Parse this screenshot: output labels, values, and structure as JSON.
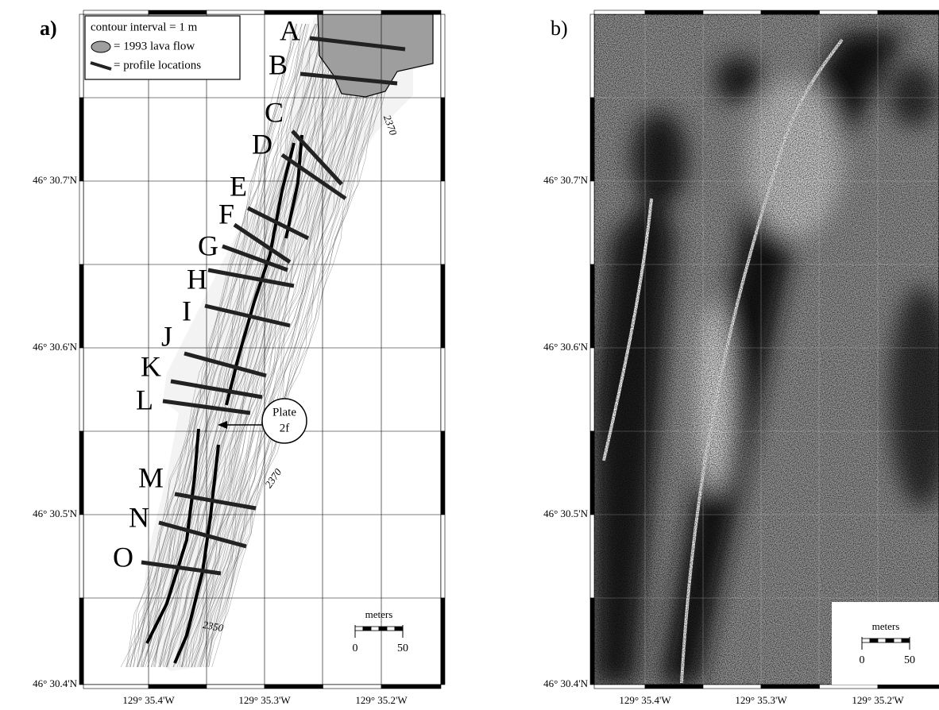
{
  "panels": [
    {
      "label": "a)",
      "legend": [
        "contour interval = 1 m",
        "= 1993 lava flow",
        "= profile locations"
      ],
      "lat_labels": [
        "46° 30.7'N",
        "46° 30.6'N",
        "46° 30.5'N",
        "46° 30.4'N"
      ],
      "lon_labels": [
        "129° 35.4'W",
        "129° 35.3'W",
        "129° 35.2'W"
      ],
      "profiles": [
        "A",
        "B",
        "C",
        "D",
        "E",
        "F",
        "G",
        "H",
        "I",
        "J",
        "K",
        "L",
        "M",
        "N",
        "O"
      ],
      "callout": [
        "Plate",
        "2f"
      ],
      "contour_labels": [
        "2370",
        "2370",
        "2350"
      ],
      "scale": {
        "title": "meters",
        "ticks": [
          "0",
          "50"
        ]
      }
    },
    {
      "label": "b)",
      "lat_labels": [
        "46° 30.7'N",
        "46° 30.6'N",
        "46° 30.5'N",
        "46° 30.4'N"
      ],
      "lon_labels": [
        "129° 35.4'W",
        "129° 35.3'W",
        "129° 35.2'W"
      ],
      "scale": {
        "title": "meters",
        "ticks": [
          "0",
          "50"
        ]
      }
    }
  ]
}
